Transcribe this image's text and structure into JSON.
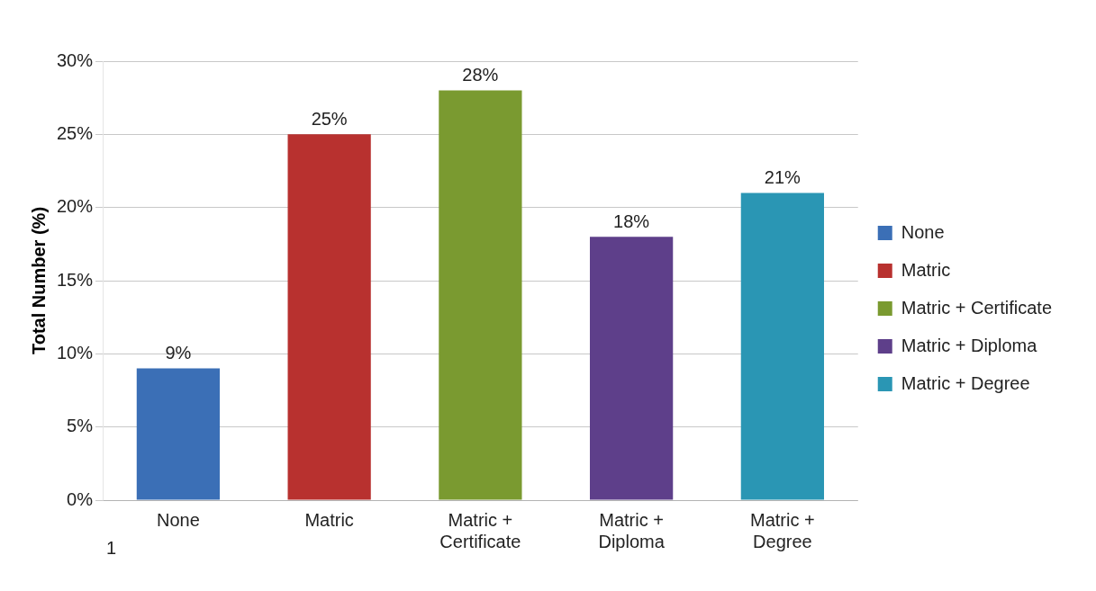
{
  "chart_data": {
    "type": "bar",
    "ylabel": "Total Number (%)",
    "categories": [
      "None",
      "Matric",
      "Matric + Certificate",
      "Matric + Diploma",
      "Matric + Degree"
    ],
    "series": [
      {
        "name": "None",
        "color": "#3b6fb6",
        "values": [
          9,
          null,
          null,
          null,
          null
        ],
        "value_labels": [
          "9%",
          null,
          null,
          null,
          null
        ]
      },
      {
        "name": "Matric",
        "color": "#b8312f",
        "values": [
          null,
          25,
          null,
          null,
          null
        ],
        "value_labels": [
          null,
          "25%",
          null,
          null,
          null
        ]
      },
      {
        "name": "Matric + Certificate",
        "color": "#7a9a30",
        "values": [
          null,
          null,
          28,
          null,
          null
        ],
        "value_labels": [
          null,
          null,
          "28%",
          null,
          null
        ]
      },
      {
        "name": "Matric + Diploma",
        "color": "#5e3f8a",
        "values": [
          null,
          null,
          null,
          18,
          null
        ],
        "value_labels": [
          null,
          null,
          null,
          "18%",
          null
        ]
      },
      {
        "name": "Matric + Degree",
        "color": "#2a96b4",
        "values": [
          null,
          null,
          null,
          null,
          21
        ],
        "value_labels": [
          null,
          null,
          null,
          null,
          "21%"
        ]
      }
    ],
    "ylim": [
      0,
      30
    ],
    "yticks": [
      {
        "value": 0,
        "label": "0%"
      },
      {
        "value": 5,
        "label": "5%"
      },
      {
        "value": 10,
        "label": "10%"
      },
      {
        "value": 15,
        "label": "15%"
      },
      {
        "value": 20,
        "label": "20%"
      },
      {
        "value": 25,
        "label": "25%"
      },
      {
        "value": 30,
        "label": "30%"
      }
    ],
    "grid": "y",
    "legend": "right",
    "annotations": [
      "1"
    ]
  }
}
